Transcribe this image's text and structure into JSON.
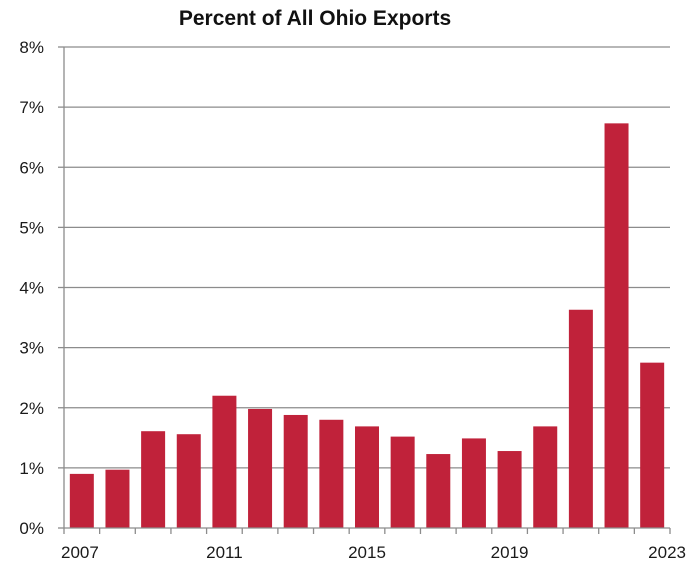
{
  "chart_data": {
    "type": "bar",
    "title": "Percent of All Ohio Exports",
    "xlabel": "",
    "ylabel": "",
    "categories": [
      "2007",
      "2008",
      "2009",
      "2010",
      "2011",
      "2012",
      "2013",
      "2014",
      "2015",
      "2016",
      "2017",
      "2018",
      "2019",
      "2020",
      "2021",
      "2022",
      "2023"
    ],
    "values": [
      0.9,
      0.97,
      1.61,
      1.56,
      2.2,
      1.98,
      1.88,
      1.8,
      1.69,
      1.52,
      1.23,
      1.49,
      1.28,
      1.69,
      3.63,
      6.73,
      2.75
    ],
    "x_tick_labels": [
      "2007",
      "2011",
      "2015",
      "2019",
      "2023"
    ],
    "y_tick_labels": [
      "0%",
      "1%",
      "2%",
      "3%",
      "4%",
      "5%",
      "6%",
      "7%",
      "8%"
    ],
    "ylim": [
      0,
      8
    ],
    "grid": true,
    "legend": "none",
    "bar_color": "#c0223a",
    "grid_color": "#8c8c8c"
  }
}
